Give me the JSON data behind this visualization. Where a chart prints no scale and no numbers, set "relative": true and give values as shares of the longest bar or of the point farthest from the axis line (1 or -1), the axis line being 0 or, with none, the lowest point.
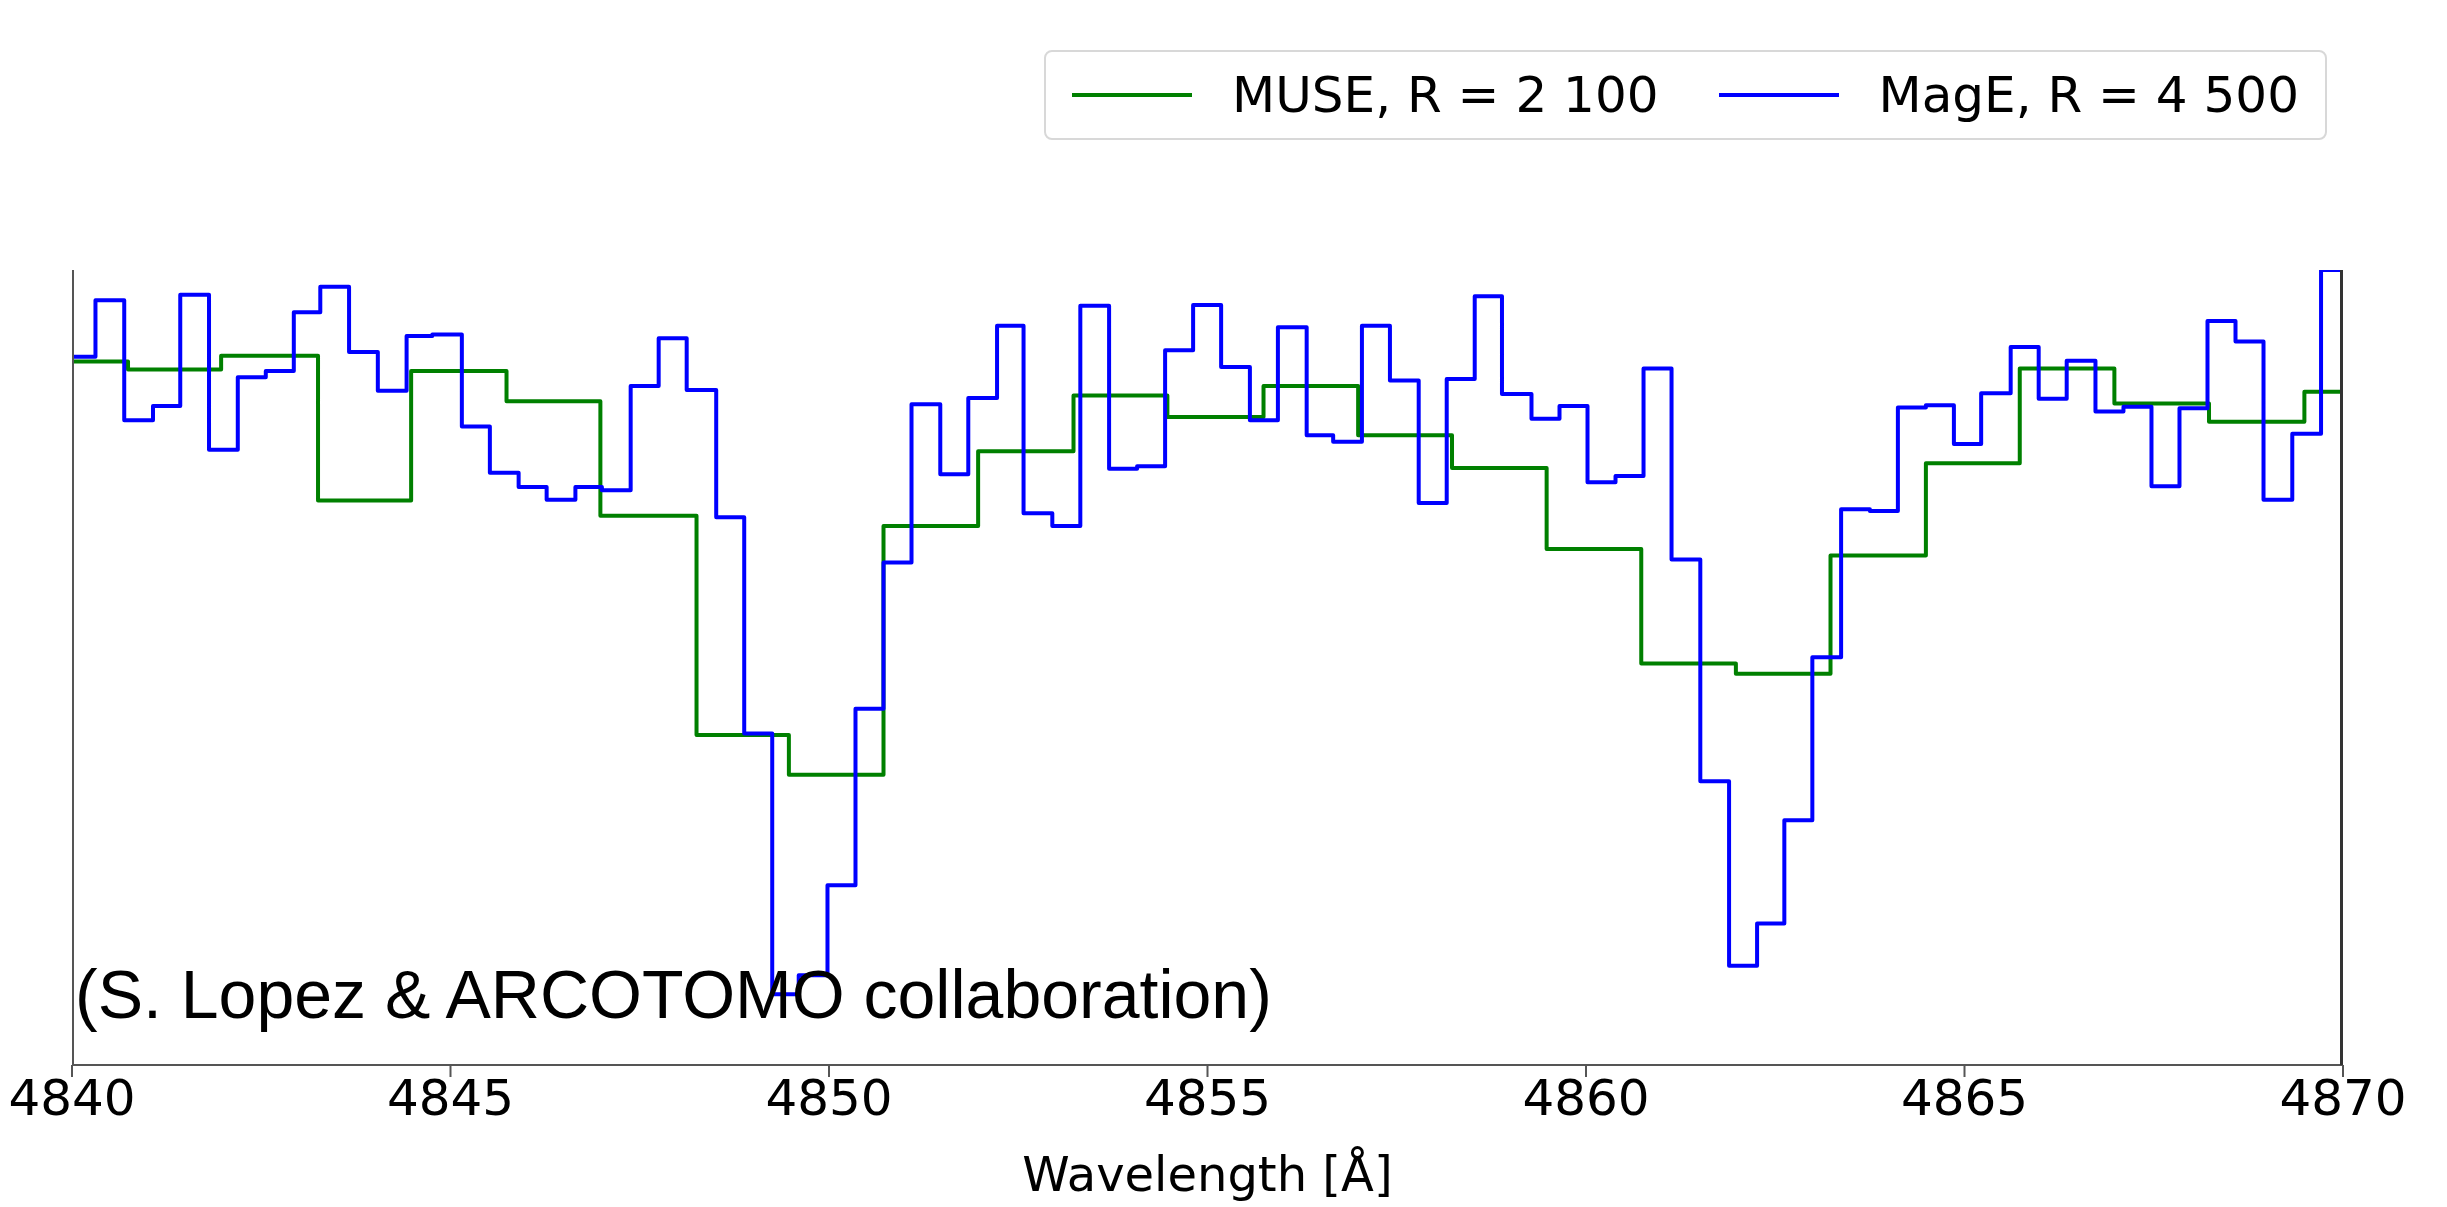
{
  "chart_data": {
    "type": "step",
    "relative": true,
    "xlabel": "Wavelength [Å]",
    "xlim": [
      4840,
      4870
    ],
    "xticks": [
      4840,
      4845,
      4850,
      4855,
      4860,
      4865,
      4870
    ],
    "legend": "top right",
    "annotations": [
      "(S. Lopez & ARCOTOMO collaboration)"
    ],
    "series": [
      {
        "name": "MUSE, R = 2 100",
        "color": "#008000",
        "x": [
          4840.0,
          4840.74,
          4841.97,
          4843.25,
          4844.48,
          4845.74,
          4846.98,
          4848.25,
          4849.47,
          4850.72,
          4851.97,
          4853.23,
          4854.47,
          4855.74,
          4856.99,
          4858.23,
          4859.48,
          4860.73,
          4861.98,
          4863.23,
          4864.49,
          4865.73,
          4866.98,
          4868.23,
          4869.49,
          4870.0
        ],
        "values": [
          0.885,
          0.875,
          0.892,
          0.71,
          0.873,
          0.835,
          0.691,
          0.415,
          0.365,
          0.678,
          0.772,
          0.842,
          0.815,
          0.854,
          0.792,
          0.751,
          0.649,
          0.505,
          0.492,
          0.641,
          0.757,
          0.876,
          0.832,
          0.809,
          0.847,
          0.847
        ]
      },
      {
        "name": "MagE, R = 4 500",
        "color": "#0000ff",
        "x": [
          4840.0,
          4840.31,
          4840.69,
          4841.07,
          4841.43,
          4841.81,
          4842.19,
          4842.56,
          4842.93,
          4843.28,
          4843.66,
          4844.04,
          4844.42,
          4844.76,
          4845.15,
          4845.52,
          4845.9,
          4846.27,
          4846.65,
          4847.0,
          4847.38,
          4847.75,
          4848.12,
          4848.51,
          4848.88,
          4849.25,
          4849.6,
          4849.98,
          4850.35,
          4850.72,
          4851.09,
          4851.47,
          4851.84,
          4852.22,
          4852.57,
          4852.95,
          4853.32,
          4853.7,
          4854.07,
          4854.44,
          4854.81,
          4855.18,
          4855.56,
          4855.93,
          4856.31,
          4856.66,
          4857.04,
          4857.41,
          4857.79,
          4858.16,
          4858.53,
          4858.89,
          4859.28,
          4859.65,
          4860.02,
          4860.39,
          4860.76,
          4861.13,
          4861.51,
          4861.89,
          4862.26,
          4862.62,
          4862.99,
          4863.37,
          4863.75,
          4864.12,
          4864.49,
          4864.86,
          4865.22,
          4865.61,
          4865.98,
          4866.35,
          4866.73,
          4867.1,
          4867.47,
          4867.84,
          4868.21,
          4868.58,
          4868.95,
          4869.33,
          4869.71,
          4870.0
        ],
        "values": [
          0.891,
          0.962,
          0.811,
          0.829,
          0.969,
          0.774,
          0.865,
          0.873,
          0.947,
          0.979,
          0.897,
          0.848,
          0.917,
          0.919,
          0.803,
          0.745,
          0.727,
          0.711,
          0.727,
          0.723,
          0.854,
          0.914,
          0.849,
          0.689,
          0.417,
          0.089,
          0.113,
          0.226,
          0.448,
          0.632,
          0.831,
          0.743,
          0.839,
          0.93,
          0.694,
          0.678,
          0.955,
          0.75,
          0.753,
          0.899,
          0.956,
          0.878,
          0.811,
          0.928,
          0.792,
          0.784,
          0.93,
          0.861,
          0.707,
          0.863,
          0.967,
          0.844,
          0.813,
          0.829,
          0.733,
          0.741,
          0.876,
          0.636,
          0.357,
          0.125,
          0.178,
          0.308,
          0.513,
          0.699,
          0.697,
          0.827,
          0.83,
          0.781,
          0.845,
          0.903,
          0.838,
          0.886,
          0.822,
          0.828,
          0.728,
          0.826,
          0.936,
          0.91,
          0.711,
          0.794,
          1.0,
          1.0
        ]
      }
    ]
  }
}
